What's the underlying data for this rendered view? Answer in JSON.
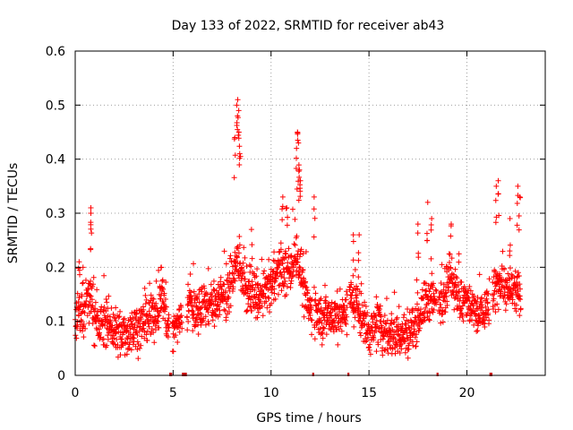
{
  "chart_data": {
    "type": "scatter",
    "title": "Day 133 of 2022, SRMTID for receiver ab43",
    "xlabel": "GPS time / hours",
    "ylabel": "SRMTID / TECUs",
    "xlim": [
      0,
      24
    ],
    "ylim": [
      0,
      0.6
    ],
    "xticks": [
      0,
      5,
      10,
      15,
      20
    ],
    "yticks": [
      0,
      0.1,
      0.2,
      0.3,
      0.4,
      0.5,
      0.6
    ],
    "grid": true,
    "marker": "+",
    "color": "#ff0000",
    "series": [
      {
        "name": "SRMTID",
        "profile_hours": [
          0.0,
          0.2,
          0.4,
          0.6,
          0.8,
          1.0,
          1.3,
          1.6,
          2.0,
          2.4,
          2.7,
          3.0,
          3.3,
          3.6,
          3.9,
          4.2,
          4.45,
          4.7,
          5.0,
          5.3,
          5.6,
          5.9,
          6.2,
          6.5,
          6.8,
          7.1,
          7.4,
          7.7,
          7.95,
          8.15,
          8.3,
          8.45,
          8.6,
          8.8,
          9.1,
          9.4,
          9.7,
          10.0,
          10.3,
          10.6,
          10.9,
          11.1,
          11.3,
          11.5,
          11.7,
          12.0,
          12.3,
          12.6,
          12.9,
          13.2,
          13.5,
          13.8,
          14.1,
          14.4,
          14.7,
          15.0,
          15.3,
          15.6,
          15.9,
          16.2,
          16.5,
          16.8,
          17.1,
          17.4,
          17.7,
          17.95,
          18.2,
          18.5,
          18.8,
          19.1,
          19.4,
          19.7,
          20.0,
          20.3,
          20.6,
          20.9,
          21.2,
          21.5,
          21.8,
          22.1,
          22.4,
          22.75
        ],
        "profile_level": [
          0.08,
          0.12,
          0.1,
          0.14,
          0.15,
          0.1,
          0.09,
          0.1,
          0.08,
          0.07,
          0.08,
          0.09,
          0.09,
          0.1,
          0.1,
          0.12,
          0.15,
          0.1,
          0.08,
          0.1,
          0.12,
          0.13,
          0.12,
          0.13,
          0.13,
          0.13,
          0.15,
          0.15,
          0.17,
          0.18,
          0.22,
          0.2,
          0.17,
          0.15,
          0.15,
          0.14,
          0.15,
          0.17,
          0.19,
          0.19,
          0.19,
          0.21,
          0.23,
          0.19,
          0.15,
          0.12,
          0.11,
          0.11,
          0.11,
          0.11,
          0.11,
          0.12,
          0.14,
          0.13,
          0.1,
          0.08,
          0.09,
          0.09,
          0.08,
          0.08,
          0.07,
          0.08,
          0.08,
          0.1,
          0.12,
          0.14,
          0.14,
          0.13,
          0.15,
          0.18,
          0.17,
          0.13,
          0.14,
          0.12,
          0.11,
          0.12,
          0.14,
          0.16,
          0.18,
          0.15,
          0.15,
          0.15
        ],
        "peak_hours": [
          0.2,
          0.4,
          0.8,
          0.8,
          4.4,
          8.15,
          8.25,
          8.3,
          8.35,
          8.4,
          9.0,
          10.6,
          10.8,
          11.3,
          11.35,
          11.4,
          11.45,
          11.5,
          12.2,
          14.2,
          14.5,
          17.5,
          18.0,
          18.2,
          19.2,
          21.5,
          21.6,
          22.2,
          22.6,
          22.7
        ],
        "peak_values": [
          0.21,
          0.2,
          0.31,
          0.3,
          0.2,
          0.44,
          0.5,
          0.51,
          0.49,
          0.41,
          0.27,
          0.33,
          0.31,
          0.42,
          0.45,
          0.43,
          0.38,
          0.36,
          0.33,
          0.26,
          0.26,
          0.28,
          0.32,
          0.29,
          0.28,
          0.35,
          0.36,
          0.29,
          0.35,
          0.33
        ],
        "samples_per_hour": 90,
        "spread": 0.045,
        "data_gaps_hours": [
          [
            4.8,
            4.95
          ],
          [
            5.45,
            5.7
          ],
          [
            12.1,
            12.2
          ],
          [
            13.9,
            14.0
          ],
          [
            18.45,
            18.55
          ],
          [
            21.15,
            21.3
          ]
        ]
      }
    ]
  }
}
